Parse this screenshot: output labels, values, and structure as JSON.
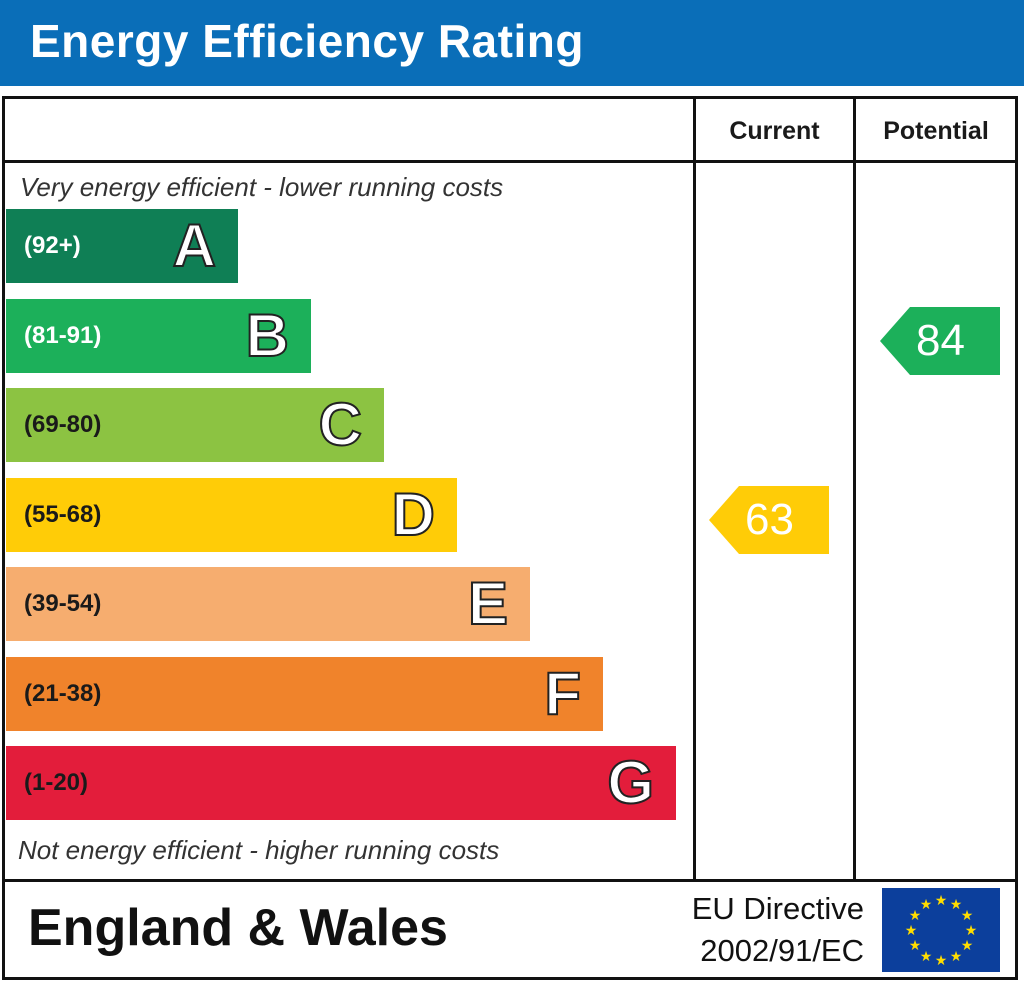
{
  "header": {
    "title": "Energy Efficiency Rating"
  },
  "columns": {
    "current": "Current",
    "potential": "Potential"
  },
  "captions": {
    "top": "Very energy efficient - lower running costs",
    "bottom": "Not energy efficient - higher running costs"
  },
  "chart_data": {
    "type": "bar",
    "title": "Energy Efficiency Rating",
    "categories": [
      "A",
      "B",
      "C",
      "D",
      "E",
      "F",
      "G"
    ],
    "bands": [
      {
        "letter": "A",
        "range": "(92+)",
        "color": "#0f7f55",
        "range_color": "#ffffff"
      },
      {
        "letter": "B",
        "range": "(81-91)",
        "color": "#1cb05a",
        "range_color": "#ffffff"
      },
      {
        "letter": "C",
        "range": "(69-80)",
        "color": "#8cc342",
        "range_color": "#1a1a1a"
      },
      {
        "letter": "D",
        "range": "(55-68)",
        "color": "#ffcc07",
        "range_color": "#1a1a1a"
      },
      {
        "letter": "E",
        "range": "(39-54)",
        "color": "#f6ad6f",
        "range_color": "#1a1a1a"
      },
      {
        "letter": "F",
        "range": "(21-38)",
        "color": "#f0832b",
        "range_color": "#1a1a1a"
      },
      {
        "letter": "G",
        "range": "(1-20)",
        "color": "#e31d3b",
        "range_color": "#1a1a1a"
      }
    ],
    "series": [
      {
        "name": "Current",
        "value": 63,
        "band": "D",
        "color": "#ffcc07"
      },
      {
        "name": "Potential",
        "value": 84,
        "band": "B",
        "color": "#1cb05a"
      }
    ]
  },
  "footer": {
    "region": "England & Wales",
    "directive_line1": "EU Directive",
    "directive_line2": "2002/91/EC",
    "flag_color": "#0c3f9c",
    "star_color": "#ffdd00"
  }
}
